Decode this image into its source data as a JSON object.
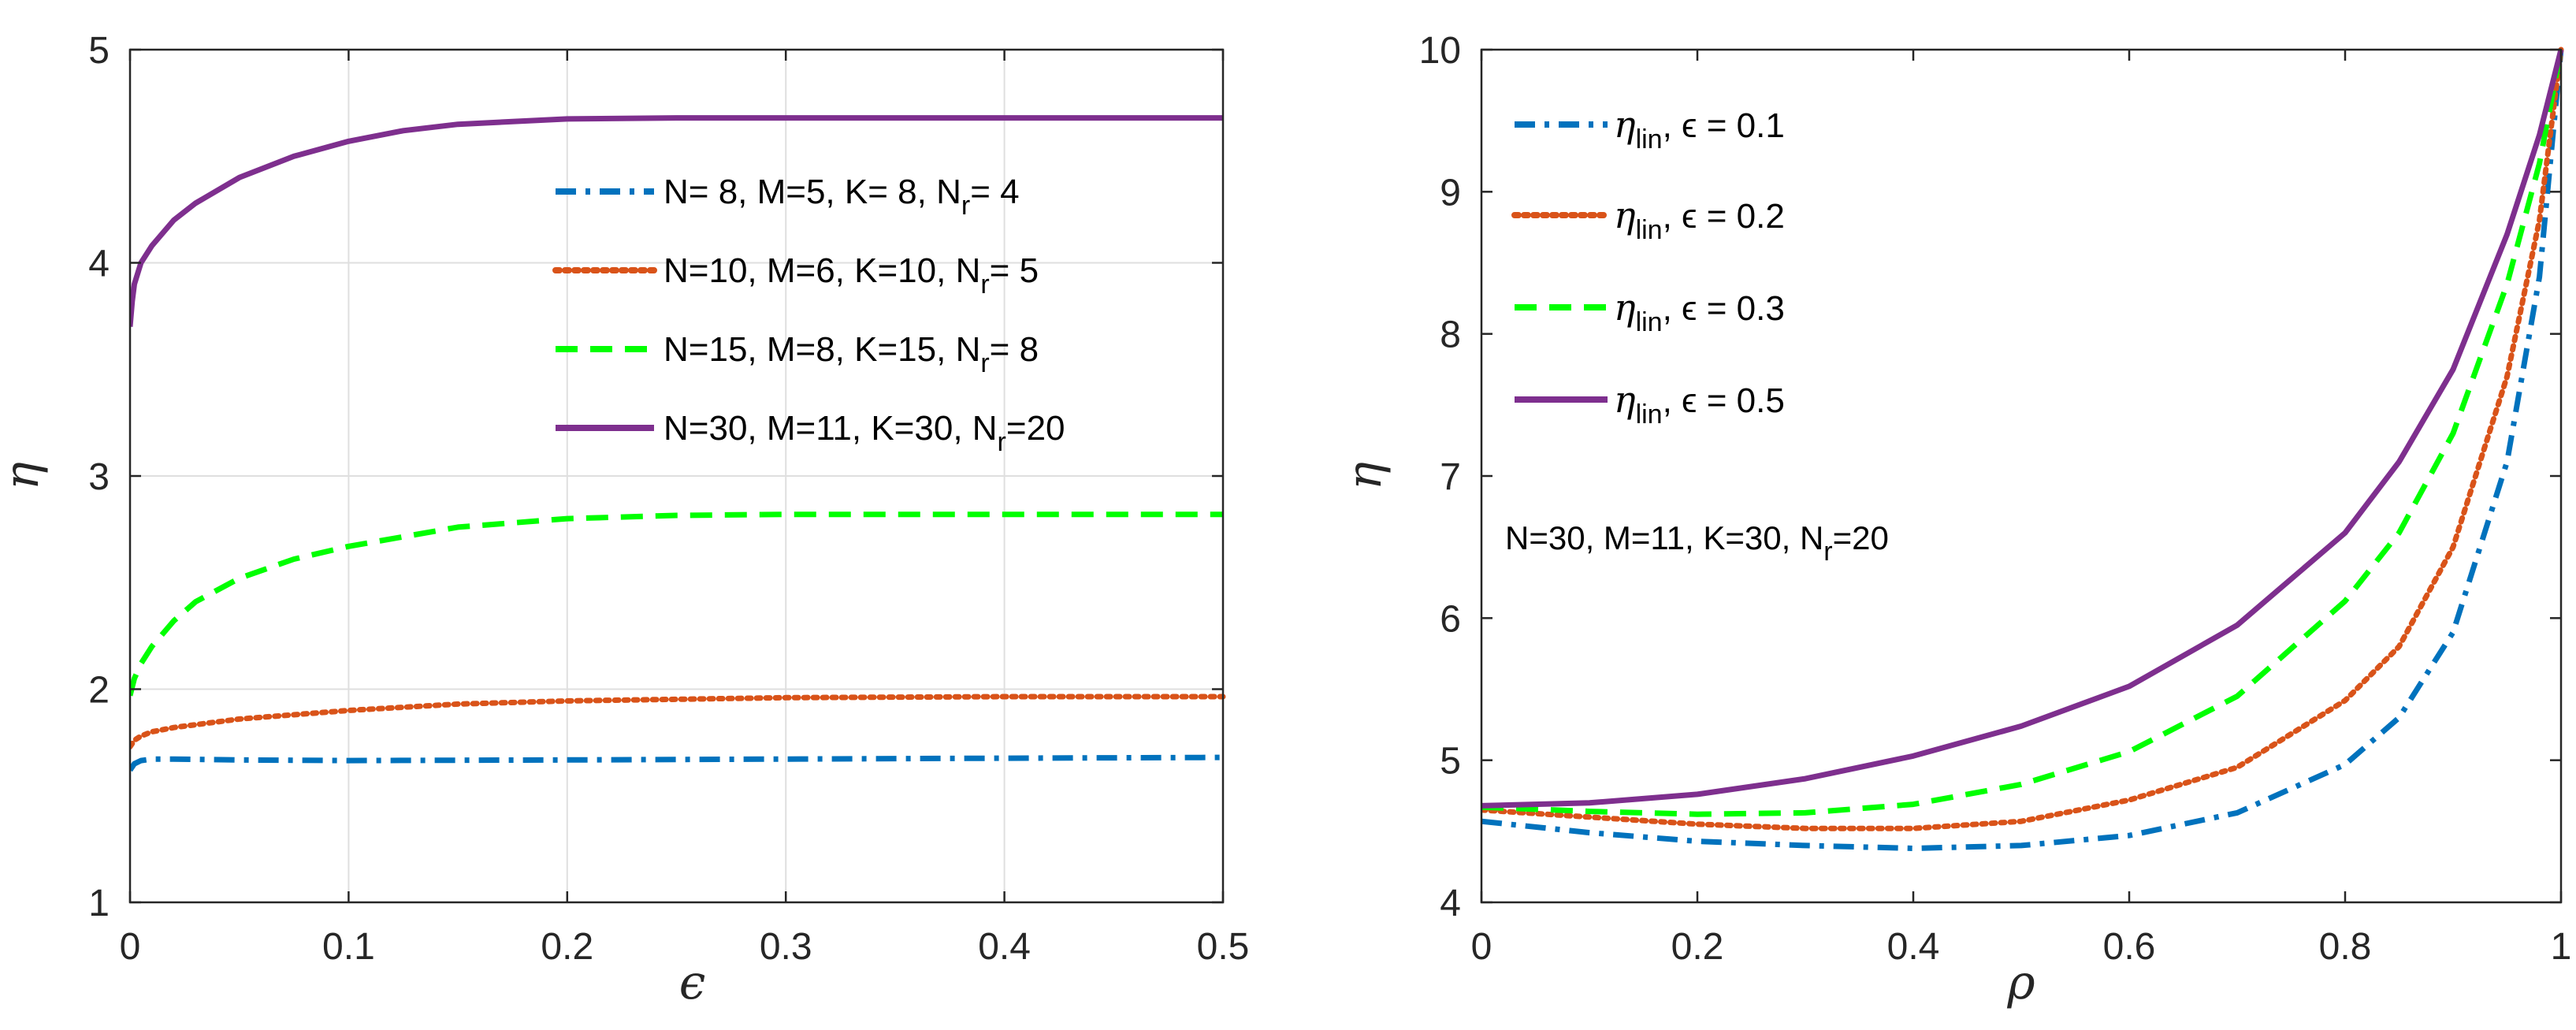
{
  "chart_data": [
    {
      "type": "line",
      "xlabel": "ϵ",
      "ylabel": "η",
      "xlim": [
        0,
        0.5
      ],
      "ylim": [
        1,
        5
      ],
      "xticks": [
        0,
        0.1,
        0.2,
        0.3,
        0.4,
        0.5
      ],
      "xtick_labels": [
        "0",
        "0.1",
        "0.2",
        "0.3",
        "0.4",
        "0.5"
      ],
      "yticks": [
        1,
        2,
        3,
        4,
        5
      ],
      "ytick_labels": [
        "1",
        "2",
        "3",
        "4",
        "5"
      ],
      "grid": true,
      "legend_position": "top-right",
      "series": [
        {
          "name": "N= 8, M=5, K= 8, N_r= 4",
          "legend_main": "N= 8, M=5, K= 8, N",
          "legend_sub": "r",
          "legend_tail": "= 4",
          "color": "#0072BD",
          "style": "dashdot",
          "x": [
            0,
            0.002,
            0.005,
            0.01,
            0.02,
            0.05,
            0.1,
            0.2,
            0.3,
            0.4,
            0.5
          ],
          "y": [
            1.62,
            1.65,
            1.665,
            1.672,
            1.672,
            1.668,
            1.665,
            1.668,
            1.672,
            1.676,
            1.68
          ]
        },
        {
          "name": "N=10, M=6, K=10, N_r= 5",
          "legend_main": "N=10, M=6, K=10, N",
          "legend_sub": "r",
          "legend_tail": "= 5",
          "color": "#D95319",
          "style": "dotted",
          "x": [
            0,
            0.002,
            0.005,
            0.01,
            0.02,
            0.05,
            0.1,
            0.15,
            0.2,
            0.3,
            0.4,
            0.5
          ],
          "y": [
            1.73,
            1.76,
            1.78,
            1.8,
            1.82,
            1.86,
            1.9,
            1.93,
            1.945,
            1.96,
            1.965,
            1.965
          ]
        },
        {
          "name": "N=15, M=8, K=15, N_r= 8",
          "legend_main": "N=15, M=8, K=15, N",
          "legend_sub": "r",
          "legend_tail": "= 8",
          "color": "#00FF00",
          "style": "dashed",
          "x": [
            0,
            0.002,
            0.005,
            0.01,
            0.02,
            0.03,
            0.05,
            0.075,
            0.1,
            0.15,
            0.2,
            0.25,
            0.3,
            0.4,
            0.5
          ],
          "y": [
            1.97,
            2.05,
            2.12,
            2.2,
            2.32,
            2.41,
            2.52,
            2.61,
            2.67,
            2.76,
            2.8,
            2.815,
            2.82,
            2.82,
            2.82
          ]
        },
        {
          "name": "N=30, M=11, K=30, N_r=20",
          "legend_main": "N=30, M=11, K=30, N",
          "legend_sub": "r",
          "legend_tail": "=20",
          "color": "#7E2F8E",
          "style": "solid",
          "x": [
            0,
            0.001,
            0.002,
            0.005,
            0.01,
            0.02,
            0.03,
            0.05,
            0.075,
            0.1,
            0.125,
            0.15,
            0.2,
            0.25,
            0.3,
            0.4,
            0.5
          ],
          "y": [
            3.7,
            3.82,
            3.9,
            4.0,
            4.08,
            4.2,
            4.28,
            4.4,
            4.5,
            4.57,
            4.62,
            4.65,
            4.675,
            4.68,
            4.68,
            4.68,
            4.68
          ]
        }
      ]
    },
    {
      "type": "line",
      "xlabel": "ρ",
      "ylabel": "η",
      "xlim": [
        0,
        1
      ],
      "ylim": [
        4,
        10
      ],
      "xticks": [
        0,
        0.2,
        0.4,
        0.6,
        0.8,
        1
      ],
      "xtick_labels": [
        "0",
        "0.2",
        "0.4",
        "0.6",
        "0.8",
        "1"
      ],
      "yticks": [
        4,
        5,
        6,
        7,
        8,
        9,
        10
      ],
      "ytick_labels": [
        "4",
        "5",
        "6",
        "7",
        "8",
        "9",
        "10"
      ],
      "grid": false,
      "legend_position": "top-left",
      "annotation": {
        "main": "N=30, M=11, K=30, N",
        "sub": "r",
        "tail": "=20"
      },
      "series": [
        {
          "name": "η_lin, ϵ = 0.1",
          "legend_sym": "η",
          "legend_sub": "lin",
          "legend_tail": ", ϵ = 0.1",
          "color": "#0072BD",
          "style": "dashdot",
          "x": [
            0,
            0.1,
            0.2,
            0.3,
            0.4,
            0.5,
            0.6,
            0.7,
            0.8,
            0.85,
            0.9,
            0.95,
            0.98,
            1
          ],
          "y": [
            4.57,
            4.49,
            4.43,
            4.4,
            4.38,
            4.4,
            4.47,
            4.63,
            4.97,
            5.3,
            5.9,
            7.1,
            8.4,
            10
          ]
        },
        {
          "name": "η_lin, ϵ = 0.2",
          "legend_sym": "η",
          "legend_sub": "lin",
          "legend_tail": ", ϵ = 0.2",
          "color": "#D95319",
          "style": "dotted",
          "x": [
            0,
            0.1,
            0.2,
            0.3,
            0.4,
            0.5,
            0.6,
            0.7,
            0.8,
            0.85,
            0.9,
            0.95,
            0.98,
            1
          ],
          "y": [
            4.65,
            4.6,
            4.55,
            4.52,
            4.52,
            4.57,
            4.72,
            4.95,
            5.42,
            5.8,
            6.5,
            7.7,
            8.8,
            10
          ]
        },
        {
          "name": "η_lin, ϵ = 0.3",
          "legend_sym": "η",
          "legend_sub": "lin",
          "legend_tail": ", ϵ = 0.3",
          "color": "#00FF00",
          "style": "dashed",
          "x": [
            0,
            0.1,
            0.2,
            0.3,
            0.4,
            0.5,
            0.6,
            0.7,
            0.8,
            0.85,
            0.9,
            0.95,
            0.98,
            1
          ],
          "y": [
            4.67,
            4.64,
            4.62,
            4.63,
            4.69,
            4.83,
            5.06,
            5.45,
            6.12,
            6.6,
            7.3,
            8.35,
            9.2,
            10
          ]
        },
        {
          "name": "η_lin, ϵ = 0.5",
          "legend_sym": "η",
          "legend_sub": "lin",
          "legend_tail": ", ϵ = 0.5",
          "color": "#7E2F8E",
          "style": "solid",
          "x": [
            0,
            0.1,
            0.2,
            0.3,
            0.4,
            0.5,
            0.6,
            0.7,
            0.8,
            0.85,
            0.9,
            0.95,
            0.98,
            1
          ],
          "y": [
            4.68,
            4.7,
            4.76,
            4.87,
            5.03,
            5.24,
            5.52,
            5.95,
            6.6,
            7.1,
            7.75,
            8.7,
            9.4,
            10
          ]
        }
      ]
    }
  ]
}
